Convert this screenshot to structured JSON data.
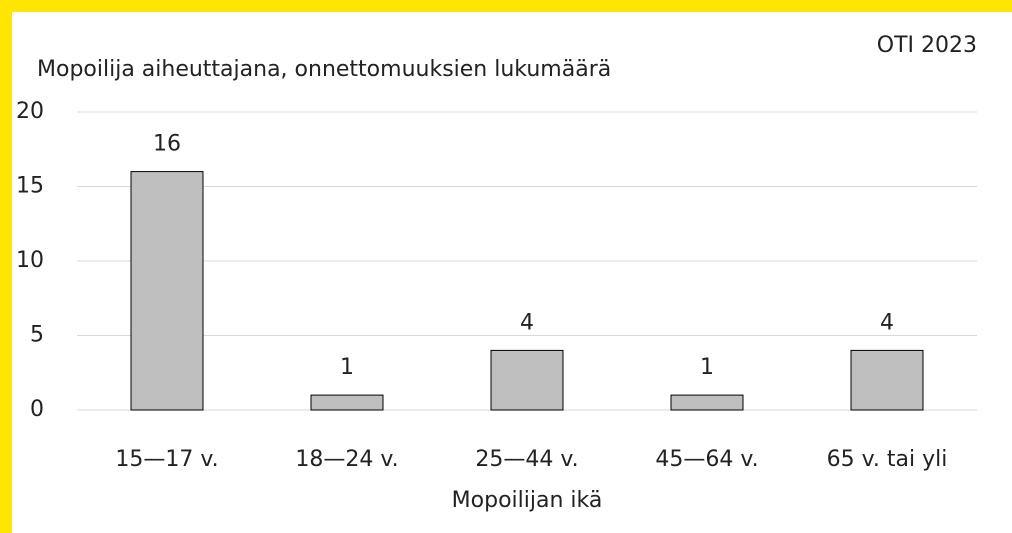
{
  "chart_data": {
    "type": "bar",
    "title": "Mopoilija aiheuttajana, onnettomuuksien lukumäärä",
    "source": "OTI 2023",
    "x_label": "Mopoilijan ikä",
    "categories": [
      "15—17 v.",
      "18—24 v.",
      "25—44 v.",
      "45—64 v.",
      "65 v. tai yli"
    ],
    "values": [
      16,
      1,
      4,
      1,
      4
    ],
    "color": "#bfbfbf",
    "ylim": [
      0,
      20
    ],
    "yticks": [
      0,
      5,
      10,
      15,
      20
    ],
    "grid": true
  }
}
